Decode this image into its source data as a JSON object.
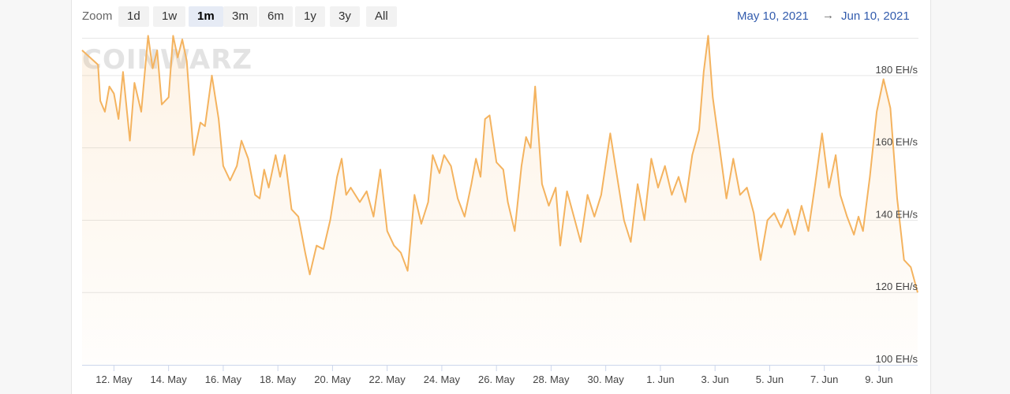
{
  "toolbar": {
    "zoom_label": "Zoom",
    "zoom_buttons": [
      {
        "label": "1d",
        "active": false
      },
      {
        "label": "1w",
        "active": false
      },
      {
        "label": "1m",
        "active": true
      },
      {
        "label": "3m",
        "active": false
      },
      {
        "label": "6m",
        "active": false
      },
      {
        "label": "1y",
        "active": false
      },
      {
        "label": "3y",
        "active": false
      },
      {
        "label": "All",
        "active": false
      }
    ],
    "range_from": "May 10, 2021",
    "range_arrow": "→",
    "range_to": "Jun 10, 2021"
  },
  "watermark": "COINWARZ",
  "colors": {
    "line": "#f4b35f",
    "grid": "#e6e6e6",
    "link": "#335cad"
  },
  "chart_data": {
    "type": "area",
    "title": "",
    "xlabel": "",
    "ylabel": "",
    "y_unit": "EH/s",
    "ylim": [
      100,
      190
    ],
    "xlim": [
      "2021-05-10 20:00",
      "2021-06-10 10:00"
    ],
    "y_ticks": [
      {
        "value": 100,
        "label": "100 EH/s"
      },
      {
        "value": 120,
        "label": "120 EH/s"
      },
      {
        "value": 140,
        "label": "140 EH/s"
      },
      {
        "value": 160,
        "label": "160 EH/s"
      },
      {
        "value": 180,
        "label": "180 EH/s"
      }
    ],
    "x_ticks": [
      {
        "date": "2021-05-12",
        "label": "12. May"
      },
      {
        "date": "2021-05-14",
        "label": "14. May"
      },
      {
        "date": "2021-05-16",
        "label": "16. May"
      },
      {
        "date": "2021-05-18",
        "label": "18. May"
      },
      {
        "date": "2021-05-20",
        "label": "20. May"
      },
      {
        "date": "2021-05-22",
        "label": "22. May"
      },
      {
        "date": "2021-05-24",
        "label": "24. May"
      },
      {
        "date": "2021-05-26",
        "label": "26. May"
      },
      {
        "date": "2021-05-28",
        "label": "28. May"
      },
      {
        "date": "2021-05-30",
        "label": "30. May"
      },
      {
        "date": "2021-06-01",
        "label": "1. Jun"
      },
      {
        "date": "2021-06-03",
        "label": "3. Jun"
      },
      {
        "date": "2021-06-05",
        "label": "5. Jun"
      },
      {
        "date": "2021-06-07",
        "label": "7. Jun"
      },
      {
        "date": "2021-06-09",
        "label": "9. Jun"
      }
    ],
    "grid": true,
    "legend": "none",
    "series": [
      {
        "values": [
          [
            "2021-05-10 20:00",
            187
          ],
          [
            "2021-05-11 10:00",
            183
          ],
          [
            "2021-05-11 12:00",
            173
          ],
          [
            "2021-05-11 16:00",
            170
          ],
          [
            "2021-05-11 20:00",
            177
          ],
          [
            "2021-05-12 00:00",
            175
          ],
          [
            "2021-05-12 04:00",
            168
          ],
          [
            "2021-05-12 08:00",
            181
          ],
          [
            "2021-05-12 14:00",
            162
          ],
          [
            "2021-05-12 18:00",
            178
          ],
          [
            "2021-05-13 00:00",
            170
          ],
          [
            "2021-05-13 06:00",
            191
          ],
          [
            "2021-05-13 10:00",
            182
          ],
          [
            "2021-05-13 14:00",
            187
          ],
          [
            "2021-05-13 18:00",
            172
          ],
          [
            "2021-05-14 00:00",
            174
          ],
          [
            "2021-05-14 04:00",
            191
          ],
          [
            "2021-05-14 08:00",
            185
          ],
          [
            "2021-05-14 12:00",
            190
          ],
          [
            "2021-05-14 16:00",
            184
          ],
          [
            "2021-05-14 22:00",
            158
          ],
          [
            "2021-05-15 04:00",
            167
          ],
          [
            "2021-05-15 08:00",
            166
          ],
          [
            "2021-05-15 14:00",
            180
          ],
          [
            "2021-05-15 20:00",
            168
          ],
          [
            "2021-05-16 00:00",
            155
          ],
          [
            "2021-05-16 06:00",
            151
          ],
          [
            "2021-05-16 12:00",
            155
          ],
          [
            "2021-05-16 16:00",
            162
          ],
          [
            "2021-05-16 22:00",
            157
          ],
          [
            "2021-05-17 04:00",
            147
          ],
          [
            "2021-05-17 08:00",
            146
          ],
          [
            "2021-05-17 12:00",
            154
          ],
          [
            "2021-05-17 16:00",
            149
          ],
          [
            "2021-05-17 22:00",
            158
          ],
          [
            "2021-05-18 02:00",
            152
          ],
          [
            "2021-05-18 06:00",
            158
          ],
          [
            "2021-05-18 12:00",
            143
          ],
          [
            "2021-05-18 18:00",
            141
          ],
          [
            "2021-05-19 00:00",
            131
          ],
          [
            "2021-05-19 04:00",
            125
          ],
          [
            "2021-05-19 10:00",
            133
          ],
          [
            "2021-05-19 16:00",
            132
          ],
          [
            "2021-05-19 22:00",
            140
          ],
          [
            "2021-05-20 04:00",
            152
          ],
          [
            "2021-05-20 08:00",
            157
          ],
          [
            "2021-05-20 12:00",
            147
          ],
          [
            "2021-05-20 16:00",
            149
          ],
          [
            "2021-05-21 00:00",
            145
          ],
          [
            "2021-05-21 06:00",
            148
          ],
          [
            "2021-05-21 12:00",
            141
          ],
          [
            "2021-05-21 18:00",
            154
          ],
          [
            "2021-05-22 00:00",
            137
          ],
          [
            "2021-05-22 06:00",
            133
          ],
          [
            "2021-05-22 12:00",
            131
          ],
          [
            "2021-05-22 18:00",
            126
          ],
          [
            "2021-05-23 00:00",
            147
          ],
          [
            "2021-05-23 06:00",
            139
          ],
          [
            "2021-05-23 12:00",
            145
          ],
          [
            "2021-05-23 16:00",
            158
          ],
          [
            "2021-05-23 22:00",
            153
          ],
          [
            "2021-05-24 02:00",
            158
          ],
          [
            "2021-05-24 08:00",
            155
          ],
          [
            "2021-05-24 14:00",
            146
          ],
          [
            "2021-05-24 20:00",
            141
          ],
          [
            "2021-05-25 02:00",
            150
          ],
          [
            "2021-05-25 06:00",
            157
          ],
          [
            "2021-05-25 10:00",
            152
          ],
          [
            "2021-05-25 14:00",
            168
          ],
          [
            "2021-05-25 18:00",
            169
          ],
          [
            "2021-05-26 00:00",
            156
          ],
          [
            "2021-05-26 06:00",
            154
          ],
          [
            "2021-05-26 10:00",
            145
          ],
          [
            "2021-05-26 16:00",
            137
          ],
          [
            "2021-05-26 22:00",
            155
          ],
          [
            "2021-05-27 02:00",
            163
          ],
          [
            "2021-05-27 06:00",
            160
          ],
          [
            "2021-05-27 10:00",
            177
          ],
          [
            "2021-05-27 16:00",
            150
          ],
          [
            "2021-05-27 22:00",
            144
          ],
          [
            "2021-05-28 04:00",
            149
          ],
          [
            "2021-05-28 08:00",
            133
          ],
          [
            "2021-05-28 14:00",
            148
          ],
          [
            "2021-05-28 20:00",
            141
          ],
          [
            "2021-05-29 02:00",
            134
          ],
          [
            "2021-05-29 08:00",
            147
          ],
          [
            "2021-05-29 14:00",
            141
          ],
          [
            "2021-05-29 20:00",
            147
          ],
          [
            "2021-05-30 04:00",
            164
          ],
          [
            "2021-05-30 10:00",
            152
          ],
          [
            "2021-05-30 16:00",
            140
          ],
          [
            "2021-05-30 22:00",
            134
          ],
          [
            "2021-05-31 04:00",
            150
          ],
          [
            "2021-05-31 10:00",
            140
          ],
          [
            "2021-05-31 16:00",
            157
          ],
          [
            "2021-05-31 22:00",
            149
          ],
          [
            "2021-06-01 04:00",
            155
          ],
          [
            "2021-06-01 10:00",
            147
          ],
          [
            "2021-06-01 16:00",
            152
          ],
          [
            "2021-06-01 22:00",
            145
          ],
          [
            "2021-06-02 04:00",
            158
          ],
          [
            "2021-06-02 10:00",
            165
          ],
          [
            "2021-06-02 14:00",
            181
          ],
          [
            "2021-06-02 18:00",
            191
          ],
          [
            "2021-06-02 22:00",
            174
          ],
          [
            "2021-06-03 04:00",
            160
          ],
          [
            "2021-06-03 10:00",
            146
          ],
          [
            "2021-06-03 16:00",
            157
          ],
          [
            "2021-06-03 22:00",
            147
          ],
          [
            "2021-06-04 04:00",
            149
          ],
          [
            "2021-06-04 10:00",
            142
          ],
          [
            "2021-06-04 16:00",
            129
          ],
          [
            "2021-06-04 22:00",
            140
          ],
          [
            "2021-06-05 04:00",
            142
          ],
          [
            "2021-06-05 10:00",
            138
          ],
          [
            "2021-06-05 16:00",
            143
          ],
          [
            "2021-06-05 22:00",
            136
          ],
          [
            "2021-06-06 04:00",
            144
          ],
          [
            "2021-06-06 10:00",
            137
          ],
          [
            "2021-06-06 16:00",
            150
          ],
          [
            "2021-06-06 22:00",
            164
          ],
          [
            "2021-06-07 04:00",
            149
          ],
          [
            "2021-06-07 10:00",
            158
          ],
          [
            "2021-06-07 14:00",
            147
          ],
          [
            "2021-06-07 20:00",
            141
          ],
          [
            "2021-06-08 02:00",
            136
          ],
          [
            "2021-06-08 06:00",
            141
          ],
          [
            "2021-06-08 10:00",
            137
          ],
          [
            "2021-06-08 16:00",
            152
          ],
          [
            "2021-06-08 22:00",
            170
          ],
          [
            "2021-06-09 04:00",
            179
          ],
          [
            "2021-06-09 10:00",
            171
          ],
          [
            "2021-06-09 16:00",
            146
          ],
          [
            "2021-06-09 22:00",
            129
          ],
          [
            "2021-06-10 04:00",
            127
          ],
          [
            "2021-06-10 10:00",
            120
          ]
        ]
      }
    ]
  }
}
